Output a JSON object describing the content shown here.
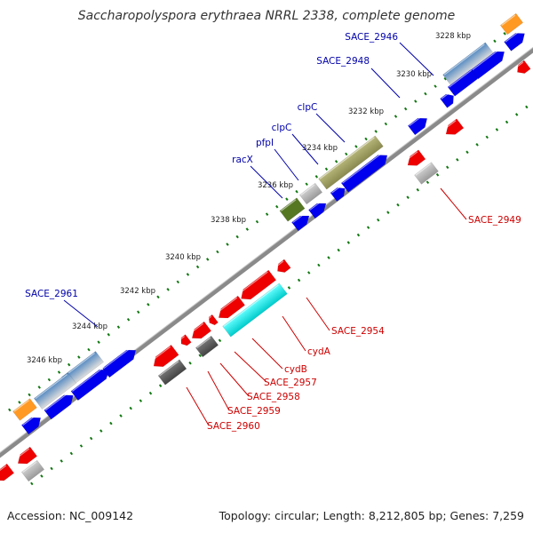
{
  "title": "Saccharopolyspora erythraea NRRL 2338, complete genome",
  "footer": {
    "accession": "Accession: NC_009142",
    "summary": "Topology: circular; Length: 8,212,805 bp; Genes: 7,259"
  },
  "ticks": [
    "3228 kbp",
    "3230 kbp",
    "3232 kbp",
    "3234 kbp",
    "3236 kbp",
    "3238 kbp",
    "3240 kbp",
    "3242 kbp",
    "3244 kbp",
    "3246 kbp"
  ],
  "labels_forward": [
    "SACE_2946",
    "SACE_2948",
    "clpC",
    "clpC",
    "pfpI",
    "racX",
    "SACE_2961"
  ],
  "labels_reverse": [
    "SACE_2949",
    "SACE_2954",
    "cydA",
    "cydB",
    "SACE_2957",
    "SACE_2958",
    "SACE_2959",
    "SACE_2960"
  ],
  "colors": {
    "forward_cds": "#0000ee",
    "reverse_cds": "#ee0000",
    "forward_label": "#0000aa",
    "reverse_label": "#cc0000",
    "tick_dots": "#117711",
    "backbone": "#888888"
  }
}
